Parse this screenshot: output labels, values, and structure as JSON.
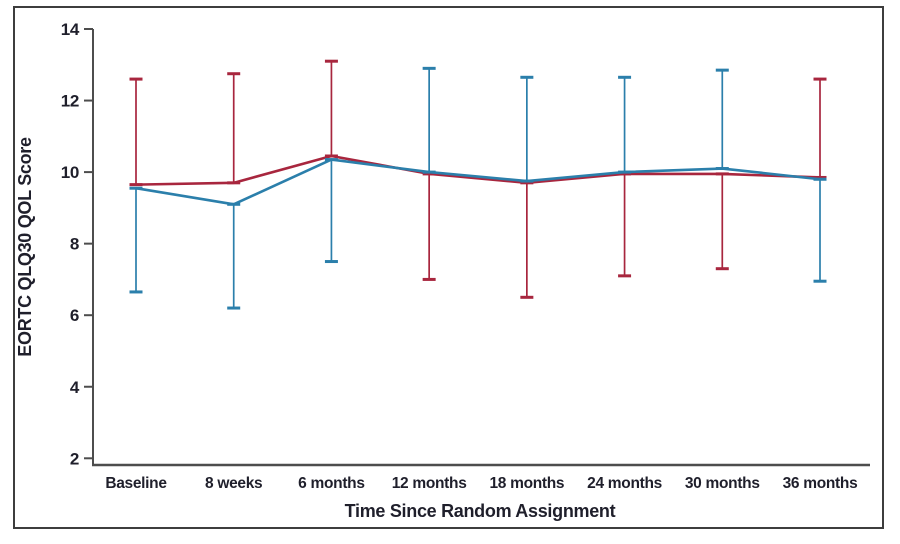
{
  "figure": {
    "background": "#ffffff",
    "border_color": "#3d3d3d",
    "axis_color": "#4d4d4d",
    "text_color": "#1f1f2b"
  },
  "chart_data": {
    "type": "line",
    "title": "",
    "xlabel": "Time Since Random Assignment",
    "ylabel": "EORTC QLQ30 QOL Score",
    "categories": [
      "Baseline",
      "8 weeks",
      "6 months",
      "12 months",
      "18 months",
      "24 months",
      "30 months",
      "36 months"
    ],
    "y_ticks": [
      2,
      4,
      6,
      8,
      10,
      12,
      14
    ],
    "ylim": [
      2,
      14
    ],
    "grid": false,
    "legend": "none",
    "series": [
      {
        "name": "red-series",
        "color": "#a8263e",
        "values": [
          9.65,
          9.7,
          10.45,
          9.95,
          9.7,
          9.95,
          9.95,
          9.85
        ],
        "error_upper": [
          12.6,
          12.75,
          13.1,
          null,
          null,
          null,
          null,
          12.6
        ],
        "error_lower": [
          null,
          null,
          null,
          7.0,
          6.5,
          7.1,
          7.3,
          null
        ]
      },
      {
        "name": "blue-series",
        "color": "#2b7fab",
        "values": [
          9.55,
          9.1,
          10.35,
          10.0,
          9.75,
          10.0,
          10.1,
          9.8
        ],
        "error_upper": [
          null,
          null,
          null,
          12.9,
          12.65,
          12.65,
          12.85,
          null
        ],
        "error_lower": [
          6.65,
          6.2,
          7.5,
          null,
          null,
          null,
          null,
          6.95
        ]
      }
    ]
  }
}
